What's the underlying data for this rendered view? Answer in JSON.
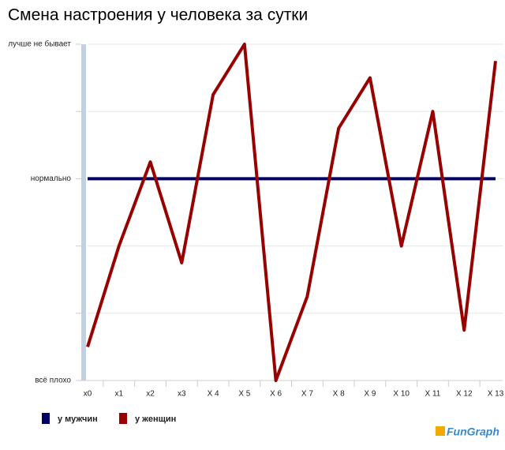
{
  "chart_data": {
    "type": "line",
    "title": "Смена настроения у человека за сутки",
    "categories": [
      "x0",
      "x1",
      "x2",
      "x3",
      "X 4",
      "X 5",
      "X 6",
      "X 7",
      "X 8",
      "X 9",
      "X 10",
      "X 11",
      "X 12",
      "X 13"
    ],
    "series": [
      {
        "name": "у мужчин",
        "color": "#000066",
        "values": [
          0,
          0,
          0,
          0,
          0,
          0,
          0,
          0,
          0,
          0,
          0,
          0,
          0,
          0
        ]
      },
      {
        "name": "у женщин",
        "color": "#990000",
        "values": [
          -2.5,
          -1,
          0.25,
          -1.25,
          1.25,
          2,
          -3,
          -1.75,
          0.75,
          1.5,
          -1,
          1,
          -2.25,
          1.75
        ]
      }
    ],
    "ylim": [
      -3,
      2
    ],
    "yticks": [
      {
        "value": -3,
        "label": "всё плохо"
      },
      {
        "value": -2,
        "label": null
      },
      {
        "value": -1,
        "label": null
      },
      {
        "value": 0,
        "label": "нормально"
      },
      {
        "value": 1,
        "label": null
      },
      {
        "value": 2,
        "label": "лучше не бывает"
      }
    ],
    "grid": true,
    "legend": "bottom-left",
    "watermark": "FunGraph"
  }
}
